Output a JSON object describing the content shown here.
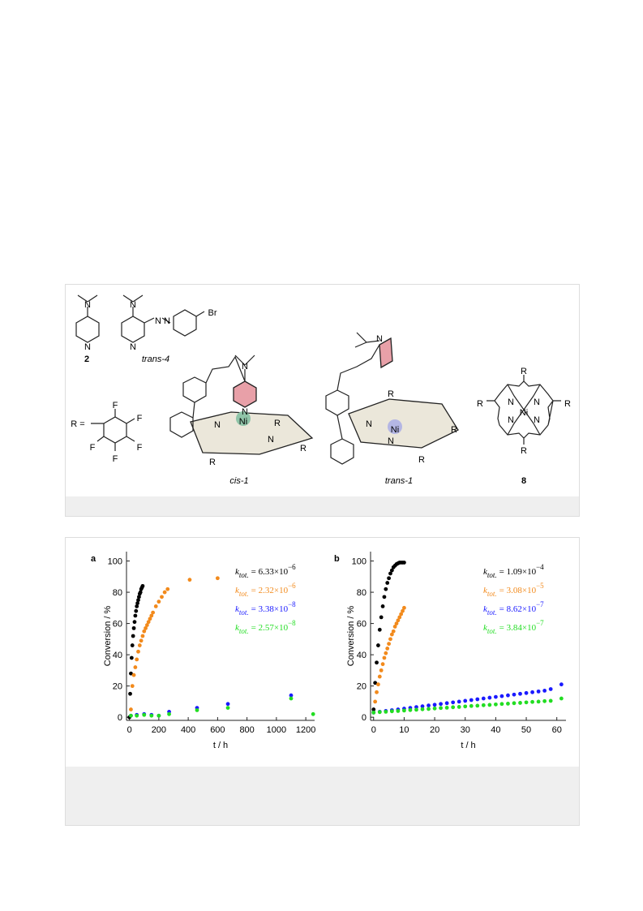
{
  "figure": {
    "labels": {
      "c2": "2",
      "c4": "trans-4",
      "cis1": "cis-1",
      "trans1": "trans-1",
      "c8": "8",
      "R_eq": "R ="
    },
    "atoms": {
      "N": "N",
      "Br": "Br",
      "F": "F",
      "R": "R",
      "Ni": "Ni"
    }
  },
  "chart_data": [
    {
      "type": "scatter",
      "panel": "a",
      "x_label": "t / h",
      "y_label": "Conversion / %",
      "xlim": [
        -20,
        1260
      ],
      "ylim": [
        -2,
        106
      ],
      "xticks": [
        0,
        200,
        400,
        600,
        800,
        1000,
        1200
      ],
      "yticks": [
        0,
        20,
        40,
        60,
        80,
        100
      ],
      "series": [
        {
          "label": [
            "k",
            "tot.",
            "= 6.33×10",
            "−6"
          ],
          "color": "#000000",
          "x": [
            0,
            5,
            10,
            15,
            20,
            25,
            30,
            35,
            40,
            45,
            50,
            55,
            60,
            65,
            70,
            75,
            80,
            85,
            90
          ],
          "values": [
            0,
            15,
            28,
            38,
            46,
            52,
            57,
            61,
            65,
            68,
            71,
            73,
            75,
            77,
            79,
            80,
            82,
            83,
            84
          ]
        },
        {
          "label": [
            "k",
            "tot.",
            "= 2.32×10",
            "−6"
          ],
          "color": "#f28a1c",
          "x": [
            10,
            20,
            30,
            40,
            50,
            60,
            70,
            80,
            90,
            100,
            110,
            120,
            130,
            140,
            150,
            160,
            180,
            200,
            220,
            240,
            260,
            410,
            600
          ],
          "values": [
            5,
            20,
            27,
            32,
            37,
            42,
            46,
            49,
            52,
            55,
            57,
            59,
            61,
            63,
            65,
            67,
            71,
            74,
            77,
            80,
            82,
            88,
            89
          ]
        },
        {
          "label": [
            "k",
            "tot.",
            "= 3.38×10",
            "−8"
          ],
          "color": "#1a1aff",
          "x": [
            10,
            50,
            100,
            150,
            200,
            270,
            460,
            670,
            1100
          ],
          "values": [
            1,
            1.5,
            2,
            1.5,
            1,
            3.5,
            6,
            8.5,
            14
          ]
        },
        {
          "label": [
            "k",
            "tot.",
            "= 2.57×10",
            "−8"
          ],
          "color": "#22dd22",
          "x": [
            10,
            50,
            100,
            150,
            200,
            270,
            460,
            670,
            1100,
            1250
          ],
          "values": [
            1,
            1,
            1.5,
            1,
            1,
            2,
            4.5,
            6,
            12,
            2
          ]
        }
      ]
    },
    {
      "type": "scatter",
      "panel": "b",
      "x_label": "t / h",
      "y_label": "Conversion / %",
      "xlim": [
        -1,
        63
      ],
      "ylim": [
        -2,
        106
      ],
      "xticks": [
        0,
        10,
        20,
        30,
        40,
        50,
        60
      ],
      "yticks": [
        0,
        20,
        40,
        60,
        80,
        100
      ],
      "series": [
        {
          "label": [
            "k",
            "tot.",
            "= 1.09×10",
            "−4"
          ],
          "color": "#000000",
          "x": [
            0,
            0.5,
            1,
            1.5,
            2,
            2.5,
            3,
            3.5,
            4,
            4.5,
            5,
            5.5,
            6,
            6.5,
            7,
            7.5,
            8,
            8.5,
            9,
            9.5,
            10
          ],
          "values": [
            5,
            22,
            35,
            46,
            56,
            64,
            71,
            77,
            82,
            86,
            89,
            92,
            94,
            96,
            97,
            98,
            98.5,
            99,
            99,
            99,
            99
          ]
        },
        {
          "label": [
            "k",
            "tot.",
            "= 3.08×10",
            "−5"
          ],
          "color": "#f28a1c",
          "x": [
            0.5,
            1,
            1.5,
            2,
            2.5,
            3,
            3.5,
            4,
            4.5,
            5,
            5.5,
            6,
            6.5,
            7,
            7.5,
            8,
            8.5,
            9,
            9.5,
            10
          ],
          "values": [
            10,
            16,
            21,
            26,
            30,
            34,
            38,
            41,
            44,
            47,
            50,
            53,
            55,
            58,
            60,
            62,
            64,
            66,
            68,
            70
          ]
        },
        {
          "label": [
            "k",
            "tot.",
            "= 8.62×10",
            "−7"
          ],
          "color": "#1a1aff",
          "x": [
            0,
            2,
            4,
            6,
            8,
            10,
            12,
            14,
            16,
            18,
            20,
            22,
            24,
            26,
            28,
            30,
            32,
            34,
            36,
            38,
            40,
            42,
            44,
            46,
            48,
            50,
            52,
            54,
            56,
            58,
            61.5
          ],
          "values": [
            3,
            3.5,
            4,
            4.5,
            5,
            5.5,
            6,
            6.5,
            7,
            7.5,
            8,
            8.5,
            9,
            9.5,
            10,
            10.5,
            11,
            11.5,
            12,
            12.5,
            13,
            13.5,
            14,
            14.5,
            15,
            15.5,
            16,
            16.5,
            17,
            18,
            21
          ]
        },
        {
          "label": [
            "k",
            "tot.",
            "= 3.84×10",
            "−7"
          ],
          "color": "#22dd22",
          "x": [
            0,
            2,
            4,
            6,
            8,
            10,
            12,
            14,
            16,
            18,
            20,
            22,
            24,
            26,
            28,
            30,
            32,
            34,
            36,
            38,
            40,
            42,
            44,
            46,
            48,
            50,
            52,
            54,
            56,
            58,
            61.5
          ],
          "values": [
            3,
            3.3,
            3.5,
            3.8,
            4,
            4.3,
            4.6,
            4.8,
            5.1,
            5.3,
            5.6,
            5.9,
            6.1,
            6.4,
            6.6,
            6.9,
            7.2,
            7.4,
            7.7,
            7.9,
            8.2,
            8.5,
            8.7,
            9,
            9.2,
            9.5,
            9.8,
            10,
            10.3,
            10.5,
            12
          ]
        }
      ]
    }
  ]
}
